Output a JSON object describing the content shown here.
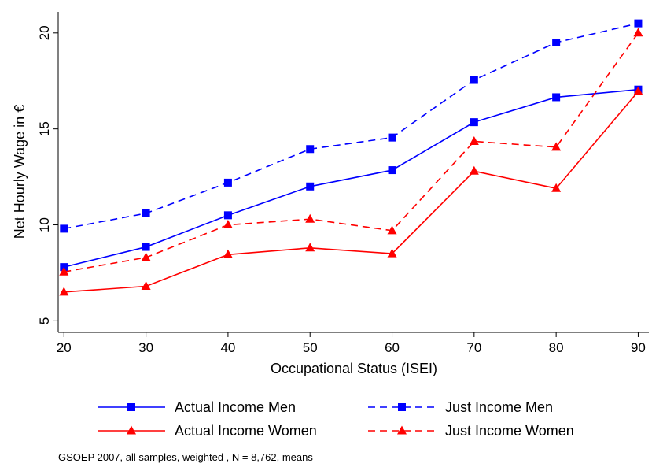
{
  "chart_data": {
    "type": "line",
    "xlabel": "Occupational Status (ISEI)",
    "ylabel": "Net Hourly Wage in €",
    "x": [
      20,
      30,
      40,
      50,
      60,
      70,
      80,
      90
    ],
    "xlim": [
      19.3,
      91.3
    ],
    "ylim": [
      4.4,
      21.1
    ],
    "xticks": [
      "20",
      "30",
      "40",
      "50",
      "60",
      "70",
      "80",
      "90"
    ],
    "yticks": [
      "5",
      "10",
      "15",
      "20"
    ],
    "grid": false,
    "legend_position": "bottom",
    "series": [
      {
        "name": "Actual Income Men",
        "color": "#0000ff",
        "dash": "solid",
        "marker": "square",
        "values": [
          7.8,
          8.85,
          10.5,
          12.0,
          12.85,
          15.35,
          16.65,
          17.05
        ]
      },
      {
        "name": "Just Income Men",
        "color": "#0000ff",
        "dash": "dashed",
        "marker": "square",
        "values": [
          9.8,
          10.6,
          12.2,
          13.95,
          14.55,
          17.55,
          19.5,
          20.5
        ]
      },
      {
        "name": "Actual Income Women",
        "color": "#ff0000",
        "dash": "solid",
        "marker": "triangle",
        "values": [
          6.5,
          6.8,
          8.45,
          8.8,
          8.5,
          12.8,
          11.9,
          16.95
        ]
      },
      {
        "name": "Just Income Women",
        "color": "#ff0000",
        "dash": "dashed",
        "marker": "triangle",
        "values": [
          7.55,
          8.3,
          10.0,
          10.3,
          9.7,
          14.35,
          14.05,
          20.0
        ]
      }
    ],
    "note": "GSOEP 2007, all samples, weighted , N = 8,762, means"
  }
}
